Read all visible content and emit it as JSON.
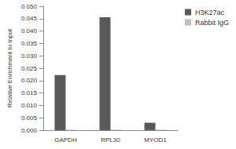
{
  "chart_data": {
    "type": "bar",
    "y_label": "Relative Enrichment to Input",
    "categories": [
      "GAPDH",
      "RPL30",
      "MYOD1"
    ],
    "series": [
      {
        "name": "H3K27ac",
        "color": "#595959",
        "values": [
          0.0222,
          0.0456,
          0.003
        ]
      },
      {
        "name": "Rabbit IgG",
        "color": "#bfbfbf",
        "values": [
          0.0002,
          0.0002,
          0.0002
        ]
      }
    ],
    "ylim": [
      0,
      0.05
    ],
    "yticks": [
      {
        "value": 0,
        "label": "0.000"
      },
      0.005,
      {
        "value": 0.01,
        "label": "0.010"
      },
      0.015,
      {
        "value": 0.02,
        "label": "0.020"
      },
      0.025,
      {
        "value": 0.03,
        "label": "0.030"
      },
      0.035,
      {
        "value": 0.04,
        "label": "0.040"
      },
      0.045,
      {
        "value": 0.05,
        "label": "0.050"
      }
    ],
    "grid": false,
    "legend": "top-right"
  }
}
